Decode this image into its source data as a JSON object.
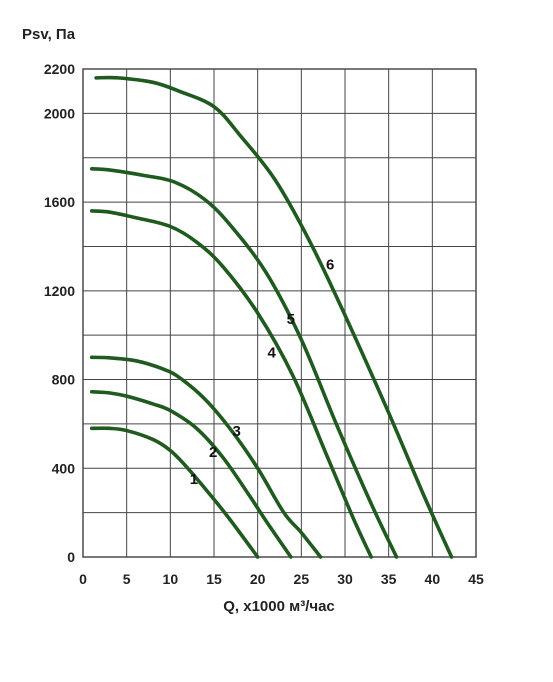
{
  "chart_data": {
    "type": "line",
    "ylabel": "Psv, Па",
    "xlabel": "Q, х1000 м³/час",
    "xlim": [
      0,
      45
    ],
    "ylim": [
      0,
      2200
    ],
    "x_ticks": [
      0,
      5,
      10,
      15,
      20,
      25,
      30,
      35,
      40,
      45
    ],
    "y_ticks": [
      0,
      400,
      800,
      1200,
      1600,
      2000,
      2200
    ],
    "grid": true,
    "line_color": "#1f5a1f",
    "series": [
      {
        "name": "1",
        "label_at": [
          12.7,
          330
        ],
        "points": [
          [
            1,
            580
          ],
          [
            3,
            580
          ],
          [
            5,
            570
          ],
          [
            8,
            530
          ],
          [
            10,
            480
          ],
          [
            12,
            400
          ],
          [
            15,
            260
          ],
          [
            17,
            160
          ],
          [
            20,
            0
          ]
        ]
      },
      {
        "name": "2",
        "label_at": [
          14.9,
          450
        ],
        "points": [
          [
            1,
            745
          ],
          [
            3,
            740
          ],
          [
            5,
            725
          ],
          [
            8,
            690
          ],
          [
            10,
            660
          ],
          [
            13,
            580
          ],
          [
            16,
            450
          ],
          [
            19,
            280
          ],
          [
            21,
            160
          ],
          [
            23.8,
            0
          ]
        ]
      },
      {
        "name": "3",
        "label_at": [
          17.6,
          545
        ],
        "points": [
          [
            1,
            900
          ],
          [
            3,
            898
          ],
          [
            6,
            885
          ],
          [
            9,
            850
          ],
          [
            11,
            810
          ],
          [
            14,
            710
          ],
          [
            17,
            570
          ],
          [
            20,
            400
          ],
          [
            23,
            200
          ],
          [
            25,
            110
          ],
          [
            27.2,
            0
          ]
        ]
      },
      {
        "name": "4",
        "label_at": [
          21.6,
          900
        ],
        "points": [
          [
            1,
            1560
          ],
          [
            3,
            1555
          ],
          [
            6,
            1530
          ],
          [
            10,
            1490
          ],
          [
            13,
            1420
          ],
          [
            16,
            1310
          ],
          [
            20,
            1100
          ],
          [
            24,
            820
          ],
          [
            28,
            450
          ],
          [
            31,
            170
          ],
          [
            33,
            0
          ]
        ]
      },
      {
        "name": "5",
        "label_at": [
          23.8,
          1050
        ],
        "points": [
          [
            1,
            1750
          ],
          [
            3,
            1745
          ],
          [
            7,
            1720
          ],
          [
            10.5,
            1690
          ],
          [
            14,
            1610
          ],
          [
            17,
            1490
          ],
          [
            21,
            1280
          ],
          [
            25,
            980
          ],
          [
            29,
            600
          ],
          [
            33,
            240
          ],
          [
            35.9,
            0
          ]
        ]
      },
      {
        "name": "6",
        "label_at": [
          28.3,
          1295
        ],
        "points": [
          [
            1.5,
            2160
          ],
          [
            4,
            2160
          ],
          [
            8,
            2140
          ],
          [
            11,
            2100
          ],
          [
            15,
            2030
          ],
          [
            18,
            1900
          ],
          [
            22,
            1700
          ],
          [
            26,
            1420
          ],
          [
            30,
            1090
          ],
          [
            35,
            650
          ],
          [
            39,
            280
          ],
          [
            42.2,
            0
          ]
        ]
      }
    ]
  }
}
